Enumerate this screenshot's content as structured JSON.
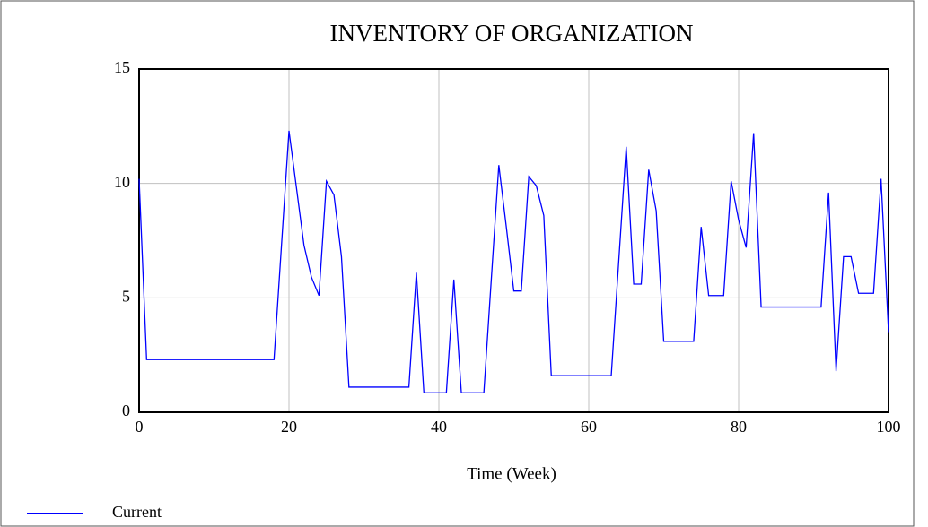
{
  "chart_data": {
    "type": "line",
    "title": "INVENTORY OF ORGANIZATION",
    "x_label": "Time (Week)",
    "x": [
      0,
      1,
      18,
      20,
      22,
      23,
      24,
      25,
      26,
      27,
      28,
      36,
      37,
      38,
      41,
      42,
      43,
      46,
      48,
      49,
      50,
      51,
      52,
      53,
      54,
      55,
      63,
      65,
      66,
      67,
      68,
      69,
      70,
      74,
      75,
      76,
      78,
      79,
      80,
      81,
      82,
      83,
      91,
      92,
      93,
      94,
      95,
      96,
      98,
      99,
      100
    ],
    "series": [
      {
        "name": "Current",
        "color": "#0000ff",
        "values": [
          10.2,
          2.3,
          2.3,
          12.3,
          7.3,
          5.9,
          5.1,
          10.1,
          9.5,
          6.8,
          1.1,
          1.1,
          6.1,
          0.85,
          0.85,
          5.8,
          0.85,
          0.85,
          10.8,
          8.1,
          5.3,
          5.3,
          10.3,
          9.9,
          8.6,
          1.6,
          1.6,
          11.6,
          5.6,
          5.6,
          10.6,
          8.8,
          3.1,
          3.1,
          8.1,
          5.1,
          5.1,
          10.1,
          8.4,
          7.2,
          12.2,
          4.6,
          4.6,
          9.6,
          1.8,
          6.8,
          6.8,
          5.2,
          5.2,
          10.2,
          3.5
        ]
      }
    ],
    "xlim": [
      0,
      100
    ],
    "xticks": [
      0,
      20,
      40,
      60,
      80,
      100
    ],
    "ylim": [
      0,
      15
    ],
    "yticks": [
      0,
      5,
      10,
      15
    ],
    "grid": true
  }
}
